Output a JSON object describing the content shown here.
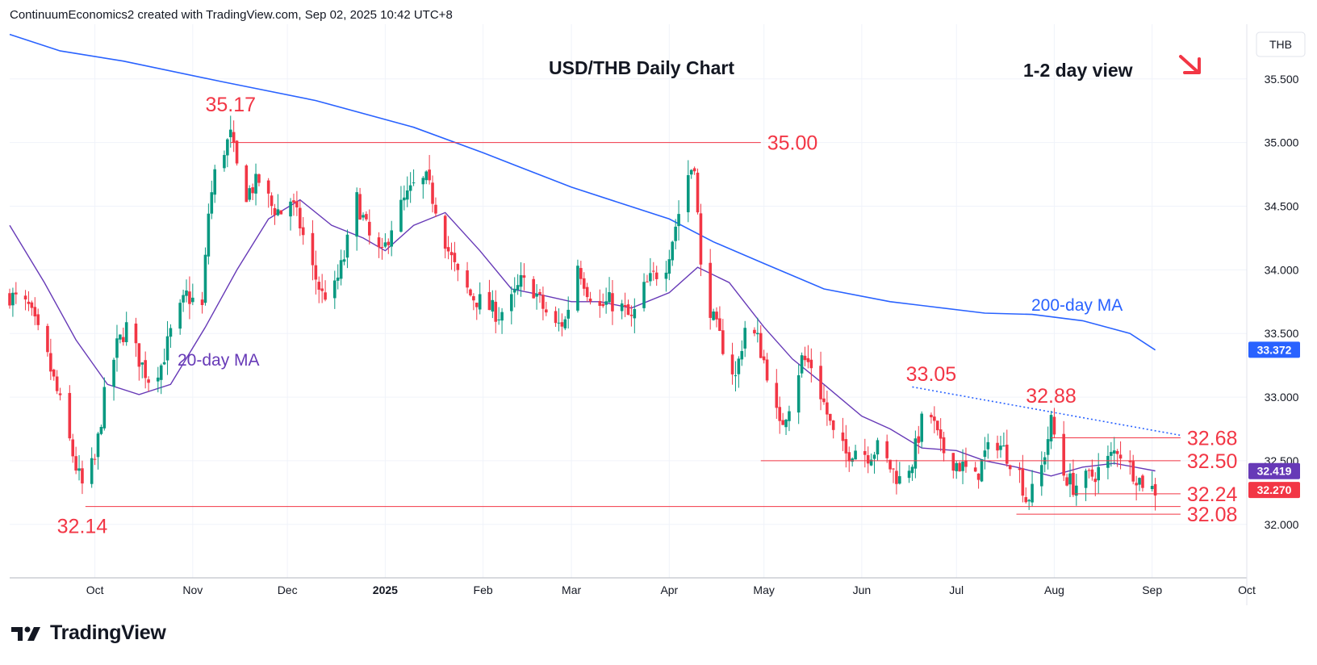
{
  "header": {
    "caption": "ContinuumEconomics2 created with TradingView.com, Sep 02, 2025 10:42 UTC+8"
  },
  "brand": {
    "logo_text": "TradingView"
  },
  "colors": {
    "up": "#089981",
    "down": "#f23645",
    "ma200": "#2962ff",
    "ma20": "#673ab7",
    "level": "#f23645",
    "grid": "#f0f3fa",
    "axis_text": "#131722"
  },
  "chart_data": {
    "type": "candlestick",
    "title": "USD/THB Daily Chart",
    "annotation": "1-2 day view",
    "annotation_icon": "arrow-down-right-icon",
    "currency": "THB",
    "y_range": [
      31.58,
      35.93
    ],
    "y_ticks": [
      "35.500",
      "35.000",
      "34.500",
      "34.000",
      "33.500",
      "33.000",
      "32.500",
      "32.000"
    ],
    "x_range": [
      "2024-09-04",
      "2025-10-01"
    ],
    "x_ticks": [
      {
        "date": "2024-10-01",
        "label": "Oct",
        "bold": false
      },
      {
        "date": "2024-11-01",
        "label": "Nov",
        "bold": false
      },
      {
        "date": "2024-12-01",
        "label": "Dec",
        "bold": false
      },
      {
        "date": "2025-01-01",
        "label": "2025",
        "bold": true
      },
      {
        "date": "2025-02-01",
        "label": "Feb",
        "bold": false
      },
      {
        "date": "2025-03-01",
        "label": "Mar",
        "bold": false
      },
      {
        "date": "2025-04-01",
        "label": "Apr",
        "bold": false
      },
      {
        "date": "2025-05-01",
        "label": "May",
        "bold": false
      },
      {
        "date": "2025-06-01",
        "label": "Jun",
        "bold": false
      },
      {
        "date": "2025-07-01",
        "label": "Jul",
        "bold": false
      },
      {
        "date": "2025-08-01",
        "label": "Aug",
        "bold": false
      },
      {
        "date": "2025-09-01",
        "label": "Sep",
        "bold": false
      },
      {
        "date": "2025-10-01",
        "label": "Oct",
        "bold": false
      }
    ],
    "price_path": [
      [
        "2024-09-04",
        33.8
      ],
      [
        "2024-09-10",
        33.7
      ],
      [
        "2024-09-16",
        33.3
      ],
      [
        "2024-09-20",
        32.95
      ],
      [
        "2024-09-25",
        32.45
      ],
      [
        "2024-09-27",
        32.3
      ],
      [
        "2024-10-01",
        32.5
      ],
      [
        "2024-10-04",
        33.0
      ],
      [
        "2024-10-08",
        33.4
      ],
      [
        "2024-10-11",
        33.55
      ],
      [
        "2024-10-15",
        33.3
      ],
      [
        "2024-10-18",
        33.15
      ],
      [
        "2024-10-22",
        33.25
      ],
      [
        "2024-10-25",
        33.5
      ],
      [
        "2024-10-30",
        33.8
      ],
      [
        "2024-11-04",
        33.7
      ],
      [
        "2024-11-06",
        34.45
      ],
      [
        "2024-11-08",
        34.75
      ],
      [
        "2024-11-11",
        34.95
      ],
      [
        "2024-11-13",
        35.05
      ],
      [
        "2024-11-15",
        34.8
      ],
      [
        "2024-11-18",
        34.6
      ],
      [
        "2024-11-22",
        34.7
      ],
      [
        "2024-11-26",
        34.5
      ],
      [
        "2024-11-29",
        34.45
      ],
      [
        "2024-12-02",
        34.55
      ],
      [
        "2024-12-05",
        34.35
      ],
      [
        "2024-12-09",
        34.0
      ],
      [
        "2024-12-12",
        33.8
      ],
      [
        "2024-12-16",
        33.85
      ],
      [
        "2024-12-19",
        34.1
      ],
      [
        "2024-12-23",
        34.55
      ],
      [
        "2024-12-27",
        34.25
      ],
      [
        "2024-12-31",
        34.1
      ],
      [
        "2025-01-03",
        34.35
      ],
      [
        "2025-01-06",
        34.5
      ],
      [
        "2025-01-10",
        34.65
      ],
      [
        "2025-01-14",
        34.7
      ],
      [
        "2025-01-17",
        34.5
      ],
      [
        "2025-01-21",
        34.15
      ],
      [
        "2025-01-24",
        33.95
      ],
      [
        "2025-01-28",
        33.8
      ],
      [
        "2025-01-31",
        33.75
      ],
      [
        "2025-02-03",
        33.7
      ],
      [
        "2025-02-06",
        33.65
      ],
      [
        "2025-02-10",
        33.75
      ],
      [
        "2025-02-13",
        33.9
      ],
      [
        "2025-02-17",
        33.85
      ],
      [
        "2025-02-20",
        33.7
      ],
      [
        "2025-02-24",
        33.55
      ],
      [
        "2025-02-27",
        33.6
      ],
      [
        "2025-03-03",
        34.05
      ],
      [
        "2025-03-06",
        33.85
      ],
      [
        "2025-03-10",
        33.7
      ],
      [
        "2025-03-13",
        33.75
      ],
      [
        "2025-03-17",
        33.7
      ],
      [
        "2025-03-20",
        33.6
      ],
      [
        "2025-03-24",
        33.85
      ],
      [
        "2025-03-27",
        33.95
      ],
      [
        "2025-03-31",
        34.05
      ],
      [
        "2025-04-03",
        34.35
      ],
      [
        "2025-04-07",
        34.75
      ],
      [
        "2025-04-09",
        34.85
      ],
      [
        "2025-04-11",
        34.0
      ],
      [
        "2025-04-15",
        33.6
      ],
      [
        "2025-04-18",
        33.4
      ],
      [
        "2025-04-22",
        33.15
      ],
      [
        "2025-04-25",
        33.55
      ],
      [
        "2025-04-29",
        33.45
      ],
      [
        "2025-05-02",
        33.2
      ],
      [
        "2025-05-06",
        32.75
      ],
      [
        "2025-05-09",
        32.95
      ],
      [
        "2025-05-13",
        33.3
      ],
      [
        "2025-05-16",
        33.25
      ],
      [
        "2025-05-20",
        32.95
      ],
      [
        "2025-05-23",
        32.7
      ],
      [
        "2025-05-27",
        32.55
      ],
      [
        "2025-05-30",
        32.6
      ],
      [
        "2025-06-03",
        32.55
      ],
      [
        "2025-06-06",
        32.6
      ],
      [
        "2025-06-10",
        32.45
      ],
      [
        "2025-06-13",
        32.35
      ],
      [
        "2025-06-17",
        32.5
      ],
      [
        "2025-06-20",
        32.8
      ],
      [
        "2025-06-23",
        32.85
      ],
      [
        "2025-06-26",
        32.6
      ],
      [
        "2025-06-30",
        32.5
      ],
      [
        "2025-07-03",
        32.45
      ],
      [
        "2025-07-07",
        32.35
      ],
      [
        "2025-07-10",
        32.55
      ],
      [
        "2025-07-14",
        32.65
      ],
      [
        "2025-07-17",
        32.55
      ],
      [
        "2025-07-21",
        32.4
      ],
      [
        "2025-07-23",
        32.2
      ],
      [
        "2025-07-25",
        32.25
      ],
      [
        "2025-07-28",
        32.45
      ],
      [
        "2025-07-31",
        32.8
      ],
      [
        "2025-08-04",
        32.4
      ],
      [
        "2025-08-07",
        32.3
      ],
      [
        "2025-08-11",
        32.35
      ],
      [
        "2025-08-14",
        32.4
      ],
      [
        "2025-08-18",
        32.5
      ],
      [
        "2025-08-21",
        32.6
      ],
      [
        "2025-08-25",
        32.45
      ],
      [
        "2025-08-28",
        32.35
      ],
      [
        "2025-09-01",
        32.28
      ],
      [
        "2025-09-02",
        32.27
      ]
    ],
    "ma200": {
      "name": "200-day MA",
      "points": [
        [
          "2024-09-04",
          35.85
        ],
        [
          "2024-09-20",
          35.72
        ],
        [
          "2024-10-10",
          35.64
        ],
        [
          "2024-11-10",
          35.48
        ],
        [
          "2024-12-10",
          35.33
        ],
        [
          "2025-01-10",
          35.12
        ],
        [
          "2025-02-01",
          34.92
        ],
        [
          "2025-03-01",
          34.65
        ],
        [
          "2025-04-01",
          34.4
        ],
        [
          "2025-04-15",
          34.22
        ],
        [
          "2025-05-01",
          34.05
        ],
        [
          "2025-05-20",
          33.85
        ],
        [
          "2025-06-10",
          33.75
        ],
        [
          "2025-07-10",
          33.66
        ],
        [
          "2025-07-25",
          33.65
        ],
        [
          "2025-08-10",
          33.6
        ],
        [
          "2025-08-25",
          33.5
        ],
        [
          "2025-09-02",
          33.37
        ]
      ]
    },
    "ma20": {
      "name": "20-day MA",
      "points": [
        [
          "2024-09-04",
          34.35
        ],
        [
          "2024-09-15",
          33.9
        ],
        [
          "2024-09-25",
          33.45
        ],
        [
          "2024-10-05",
          33.1
        ],
        [
          "2024-10-15",
          33.02
        ],
        [
          "2024-10-25",
          33.1
        ],
        [
          "2024-11-05",
          33.55
        ],
        [
          "2024-11-15",
          34.0
        ],
        [
          "2024-11-25",
          34.4
        ],
        [
          "2024-12-05",
          34.55
        ],
        [
          "2024-12-15",
          34.35
        ],
        [
          "2024-12-25",
          34.25
        ],
        [
          "2025-01-01",
          34.15
        ],
        [
          "2025-01-10",
          34.35
        ],
        [
          "2025-01-20",
          34.45
        ],
        [
          "2025-01-31",
          34.15
        ],
        [
          "2025-02-10",
          33.85
        ],
        [
          "2025-02-20",
          33.8
        ],
        [
          "2025-03-01",
          33.75
        ],
        [
          "2025-03-10",
          33.75
        ],
        [
          "2025-03-20",
          33.7
        ],
        [
          "2025-04-01",
          33.82
        ],
        [
          "2025-04-10",
          34.02
        ],
        [
          "2025-04-20",
          33.9
        ],
        [
          "2025-05-01",
          33.55
        ],
        [
          "2025-05-10",
          33.3
        ],
        [
          "2025-05-20",
          33.1
        ],
        [
          "2025-06-01",
          32.85
        ],
        [
          "2025-06-10",
          32.75
        ],
        [
          "2025-06-20",
          32.6
        ],
        [
          "2025-07-01",
          32.58
        ],
        [
          "2025-07-10",
          32.5
        ],
        [
          "2025-07-20",
          32.45
        ],
        [
          "2025-07-31",
          32.38
        ],
        [
          "2025-08-10",
          32.45
        ],
        [
          "2025-08-20",
          32.48
        ],
        [
          "2025-09-02",
          32.42
        ]
      ]
    },
    "levels": [
      {
        "value": 35.0,
        "label": "35.00",
        "from": "2024-11-13",
        "to": "2025-04-30"
      },
      {
        "value": 32.68,
        "label": "32.68",
        "from": "2025-07-31",
        "to": "2025-09-10"
      },
      {
        "value": 32.5,
        "label": "32.50",
        "from": "2025-04-30",
        "to": "2025-09-10"
      },
      {
        "value": 32.24,
        "label": "32.24",
        "from": "2025-08-07",
        "to": "2025-09-10"
      },
      {
        "value": 32.14,
        "label": "",
        "from": "2024-09-28",
        "to": "2025-09-10"
      },
      {
        "value": 32.08,
        "label": "32.08",
        "from": "2025-07-20",
        "to": "2025-09-10"
      }
    ],
    "trendline": {
      "from": [
        "2025-06-17",
        33.08
      ],
      "to": [
        "2025-09-10",
        32.7
      ],
      "style": "dotted"
    },
    "annotations": [
      {
        "text": "35.17",
        "date": "2024-11-13",
        "value": 35.17
      },
      {
        "text": "33.05",
        "date": "2025-06-23",
        "value": 33.05
      },
      {
        "text": "32.88",
        "date": "2025-07-31",
        "value": 32.88
      },
      {
        "text": "32.14",
        "date": "2024-09-27",
        "value": 32.14
      }
    ],
    "badges": [
      {
        "value": 33.372,
        "label": "33.372",
        "color": "#2962ff"
      },
      {
        "value": 32.419,
        "label": "32.419",
        "color": "#673ab7"
      },
      {
        "value": 32.27,
        "label": "32.270",
        "color": "#f23645"
      }
    ]
  }
}
